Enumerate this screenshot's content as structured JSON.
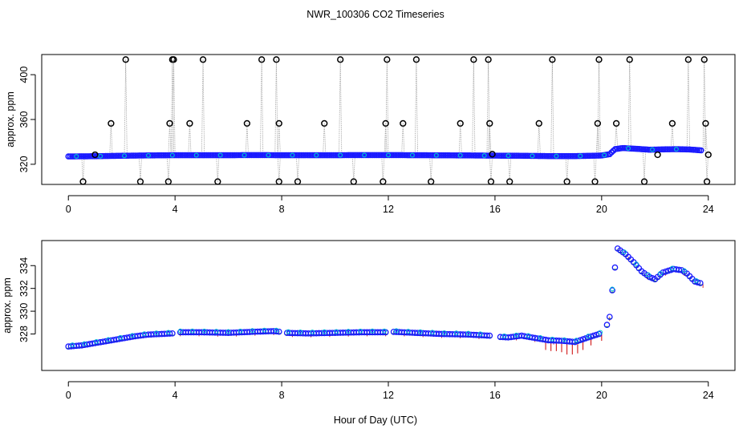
{
  "title": "NWR_100306  CO2 Timeseries",
  "xlabel": "Hour of Day (UTC)",
  "chart_data": [
    {
      "type": "scatter",
      "panel": "top",
      "ylabel": "approx. ppm",
      "xlim": [
        -1,
        25
      ],
      "ylim": [
        302,
        418
      ],
      "xticks": [
        0,
        4,
        8,
        12,
        16,
        20,
        24
      ],
      "yticks": [
        320,
        360,
        400
      ],
      "baseline": [
        [
          0,
          327
        ],
        [
          1,
          327.2
        ],
        [
          2,
          327.6
        ],
        [
          3,
          327.9
        ],
        [
          4,
          328.1
        ],
        [
          5,
          328.1
        ],
        [
          6,
          328.1
        ],
        [
          7,
          328.2
        ],
        [
          8,
          328.1
        ],
        [
          9,
          328.1
        ],
        [
          10,
          328.1
        ],
        [
          11,
          328.2
        ],
        [
          12,
          328.2
        ],
        [
          13,
          328.1
        ],
        [
          14,
          328.0
        ],
        [
          15,
          327.9
        ],
        [
          16,
          327.7
        ],
        [
          17,
          327.6
        ],
        [
          18,
          327.3
        ],
        [
          19,
          327.3
        ],
        [
          20,
          327.8
        ],
        [
          20.3,
          329.0
        ],
        [
          20.5,
          333.5
        ],
        [
          20.8,
          334.5
        ],
        [
          21.3,
          333.8
        ],
        [
          21.8,
          333.0
        ],
        [
          22.3,
          333.3
        ],
        [
          22.8,
          333.5
        ],
        [
          23.3,
          333.2
        ],
        [
          23.8,
          332.3
        ]
      ],
      "spikes_high": [
        [
          2.15,
          413.5
        ],
        [
          3.9,
          413.5
        ],
        [
          3.95,
          413.5
        ],
        [
          5.05,
          413.5
        ],
        [
          7.25,
          413.5
        ],
        [
          7.8,
          413.5
        ],
        [
          10.2,
          413.5
        ],
        [
          11.95,
          413.5
        ],
        [
          13.05,
          413.5
        ],
        [
          15.2,
          413.5
        ],
        [
          15.75,
          413.5
        ],
        [
          18.15,
          413.5
        ],
        [
          19.9,
          413.5
        ],
        [
          21.05,
          413.5
        ],
        [
          23.25,
          413.5
        ],
        [
          23.85,
          413.5
        ]
      ],
      "spikes_mid": [
        [
          1.6,
          356.5
        ],
        [
          3.8,
          356.5
        ],
        [
          4.55,
          356.5
        ],
        [
          6.7,
          356.5
        ],
        [
          7.9,
          356.5
        ],
        [
          9.6,
          356.5
        ],
        [
          11.9,
          356.5
        ],
        [
          12.55,
          356.5
        ],
        [
          14.7,
          356.5
        ],
        [
          15.8,
          356.5
        ],
        [
          17.65,
          356.5
        ],
        [
          19.85,
          356.5
        ],
        [
          20.55,
          356.5
        ],
        [
          22.65,
          356.5
        ],
        [
          23.9,
          356.5
        ]
      ],
      "spikes_low": [
        [
          0.55,
          304.5
        ],
        [
          2.7,
          304.5
        ],
        [
          3.75,
          304.5
        ],
        [
          5.6,
          304.5
        ],
        [
          7.9,
          304.5
        ],
        [
          8.6,
          304.5
        ],
        [
          10.7,
          304.5
        ],
        [
          11.8,
          304.5
        ],
        [
          13.6,
          304.5
        ],
        [
          15.85,
          304.5
        ],
        [
          16.55,
          304.5
        ],
        [
          18.7,
          304.5
        ],
        [
          19.75,
          304.5
        ],
        [
          21.6,
          304.5
        ],
        [
          23.95,
          304.5
        ]
      ],
      "outliers": [
        [
          1.0,
          328.5
        ],
        [
          15.9,
          329.0
        ],
        [
          22.1,
          328.5
        ],
        [
          24.0,
          328.5
        ]
      ]
    },
    {
      "type": "scatter",
      "panel": "bottom",
      "ylabel": "approx. ppm",
      "xlim": [
        -1,
        25
      ],
      "ylim": [
        324.8,
        336.2
      ],
      "xticks": [
        0,
        4,
        8,
        12,
        16,
        20,
        24
      ],
      "yticks": [
        328,
        330,
        332,
        334
      ],
      "profile": [
        [
          0,
          326.9
        ],
        [
          0.5,
          327.0
        ],
        [
          1,
          327.2
        ],
        [
          1.5,
          327.4
        ],
        [
          2,
          327.6
        ],
        [
          2.5,
          327.8
        ],
        [
          3,
          327.95
        ],
        [
          3.5,
          328.0
        ],
        [
          3.9,
          328.05
        ],
        [
          4.1,
          328.15
        ],
        [
          5,
          328.15
        ],
        [
          6,
          328.1
        ],
        [
          7,
          328.2
        ],
        [
          7.7,
          328.25
        ],
        [
          7.9,
          328.2
        ],
        [
          8.1,
          328.1
        ],
        [
          9,
          328.05
        ],
        [
          10,
          328.1
        ],
        [
          11,
          328.15
        ],
        [
          11.9,
          328.15
        ],
        [
          12.1,
          328.2
        ],
        [
          13,
          328.1
        ],
        [
          14,
          328.0
        ],
        [
          15,
          327.95
        ],
        [
          15.8,
          327.85
        ],
        [
          16.1,
          327.75
        ],
        [
          16.5,
          327.7
        ],
        [
          17,
          327.85
        ],
        [
          17.5,
          327.65
        ],
        [
          18,
          327.45
        ],
        [
          18.5,
          327.4
        ],
        [
          19,
          327.3
        ],
        [
          19.5,
          327.7
        ],
        [
          19.9,
          328.0
        ],
        [
          20.1,
          328.1
        ],
        [
          20.3,
          329.5
        ],
        [
          20.45,
          333.0
        ],
        [
          20.6,
          335.5
        ],
        [
          20.9,
          335.0
        ],
        [
          21.2,
          334.3
        ],
        [
          21.5,
          333.5
        ],
        [
          21.8,
          333.0
        ],
        [
          22.0,
          332.8
        ],
        [
          22.3,
          333.4
        ],
        [
          22.7,
          333.7
        ],
        [
          23.0,
          333.6
        ],
        [
          23.2,
          333.3
        ],
        [
          23.5,
          332.6
        ],
        [
          23.8,
          332.4
        ]
      ],
      "gaps": [
        [
          3.95,
          4.15
        ],
        [
          7.95,
          8.15
        ],
        [
          11.95,
          12.15
        ],
        [
          15.85,
          16.1
        ],
        [
          19.95,
          20.15
        ]
      ],
      "error_bars": [
        [
          17.9,
          327.4,
          326.6
        ],
        [
          18.1,
          327.3,
          326.5
        ],
        [
          18.3,
          327.3,
          326.5
        ],
        [
          18.5,
          327.2,
          326.4
        ],
        [
          18.7,
          327.1,
          326.2
        ],
        [
          18.9,
          327.1,
          326.2
        ],
        [
          19.1,
          327.1,
          326.3
        ],
        [
          19.3,
          327.3,
          326.6
        ],
        [
          19.6,
          327.6,
          327.0
        ],
        [
          20.0,
          328.0,
          327.4
        ]
      ]
    }
  ]
}
